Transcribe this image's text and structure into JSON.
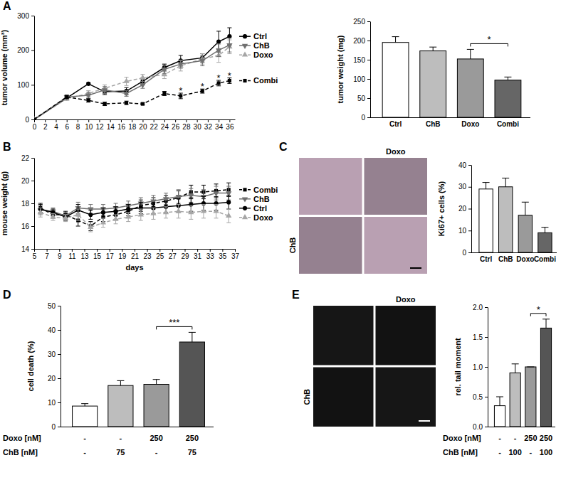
{
  "chart_data": [
    {
      "type": "line",
      "title": "A",
      "x": [
        0,
        6,
        10,
        13,
        17,
        20,
        24,
        27,
        31,
        34,
        36
      ],
      "xlim": [
        0,
        37
      ],
      "xticks": [
        0,
        2,
        4,
        6,
        8,
        10,
        12,
        14,
        16,
        18,
        20,
        22,
        24,
        26,
        28,
        30,
        32,
        34,
        36
      ],
      "ylim": [
        0,
        300
      ],
      "yticks": [
        0,
        100,
        200,
        300
      ],
      "y_label": "tumor volume (mm³)",
      "legend": "right",
      "series": [
        {
          "name": "Ctrl",
          "color": "#000000",
          "marker": "circle",
          "line_style": "solid",
          "values": [
            0,
            62,
            103,
            80,
            82,
            110,
            150,
            170,
            178,
            225,
            240
          ],
          "errors": [
            0,
            5,
            3,
            8,
            10,
            10,
            10,
            15,
            12,
            30,
            25
          ]
        },
        {
          "name": "Doxo",
          "color": "#a6a6a6",
          "marker": "triangle",
          "line_style": "dashed",
          "values": [
            0,
            60,
            75,
            90,
            110,
            120,
            130,
            155,
            175,
            185,
            210
          ],
          "errors": [
            0,
            5,
            8,
            10,
            12,
            10,
            12,
            15,
            15,
            20,
            20
          ]
        },
        {
          "name": "ChB",
          "color": "#707070",
          "marker": "triangle-down",
          "line_style": "solid",
          "values": [
            0,
            65,
            70,
            85,
            75,
            100,
            145,
            160,
            170,
            200,
            215
          ],
          "errors": [
            0,
            5,
            8,
            10,
            8,
            10,
            12,
            12,
            15,
            18,
            20
          ]
        },
        {
          "name": "Combi",
          "color": "#000000",
          "marker": "square",
          "line_style": "dashed",
          "values": [
            0,
            65,
            55,
            45,
            48,
            45,
            75,
            68,
            82,
            105,
            112
          ],
          "errors": [
            0,
            5,
            5,
            5,
            5,
            3,
            6,
            8,
            6,
            8,
            8
          ]
        }
      ],
      "annotations": [
        {
          "text": "*",
          "x": 27,
          "y": 82
        },
        {
          "text": "*",
          "x": 31,
          "y": 94
        },
        {
          "text": "*",
          "x": 34,
          "y": 119
        },
        {
          "text": "*",
          "x": 36,
          "y": 126
        }
      ]
    },
    {
      "type": "bar",
      "categories": [
        "Ctrl",
        "ChB",
        "Doxo",
        "Combi"
      ],
      "values": [
        195,
        173,
        152,
        97
      ],
      "errors": [
        15,
        10,
        25,
        8
      ],
      "colors": [
        "#ffffff",
        "#bdbdbd",
        "#9a9a9a",
        "#666666"
      ],
      "ylim": [
        0,
        250
      ],
      "yticks": [
        0,
        50,
        100,
        150,
        200,
        250
      ],
      "y_label": "tumor weight (mg)",
      "annotations": [
        {
          "text": "*",
          "between": [
            2,
            3
          ]
        }
      ]
    },
    {
      "type": "line",
      "title": "B",
      "x": [
        6,
        8,
        10,
        12,
        14,
        16,
        18,
        20,
        22,
        24,
        26,
        28,
        30,
        32,
        34,
        36
      ],
      "xlim": [
        5,
        37
      ],
      "xticks": [
        5,
        7,
        9,
        11,
        13,
        15,
        17,
        19,
        21,
        23,
        25,
        27,
        29,
        31,
        33,
        35,
        37
      ],
      "ylim": [
        14,
        22
      ],
      "yticks": [
        14,
        16,
        18,
        20,
        22
      ],
      "x_label": "days",
      "y_label": "mouse weight (g)",
      "legend": "right",
      "series": [
        {
          "name": "Combi",
          "color": "#000000",
          "marker": "square",
          "line_style": "dashed",
          "values": [
            17.6,
            17.0,
            17.0,
            16.5,
            16.0,
            16.8,
            17.0,
            17.3,
            17.8,
            18.0,
            18.2,
            18.5,
            19.0,
            19.0,
            19.1,
            19.2
          ],
          "errors": [
            0.4,
            0.3,
            0.3,
            0.5,
            0.4,
            0.4,
            0.4,
            0.4,
            0.5,
            0.5,
            0.5,
            0.6,
            0.6,
            0.6,
            0.6,
            0.6
          ]
        },
        {
          "name": "ChB",
          "color": "#707070",
          "marker": "triangle-down",
          "line_style": "solid",
          "values": [
            17.4,
            17.3,
            16.9,
            17.6,
            17.5,
            17.5,
            17.6,
            17.8,
            18.0,
            18.2,
            18.4,
            18.6,
            18.7,
            18.6,
            18.9,
            18.9
          ],
          "errors": [
            0.4,
            0.3,
            0.3,
            0.5,
            0.4,
            0.4,
            0.4,
            0.4,
            0.5,
            0.5,
            0.5,
            0.6,
            0.6,
            0.6,
            0.6,
            0.6
          ]
        },
        {
          "name": "Ctrl",
          "color": "#000000",
          "marker": "circle",
          "line_style": "solid",
          "values": [
            17.5,
            17.2,
            16.8,
            17.4,
            17.0,
            17.2,
            17.3,
            17.5,
            17.6,
            17.6,
            17.7,
            17.8,
            17.9,
            18.0,
            18.0,
            18.1
          ],
          "errors": [
            0.4,
            0.3,
            0.3,
            0.5,
            0.4,
            0.4,
            0.4,
            0.4,
            0.5,
            0.5,
            0.5,
            0.6,
            0.6,
            0.6,
            0.6,
            0.6
          ]
        },
        {
          "name": "Doxo",
          "color": "#a6a6a6",
          "marker": "triangle",
          "line_style": "dashed",
          "values": [
            17.2,
            16.8,
            16.7,
            17.0,
            15.9,
            16.3,
            16.6,
            16.8,
            17.0,
            17.1,
            17.2,
            17.3,
            17.2,
            17.3,
            17.3,
            16.9
          ],
          "errors": [
            0.4,
            0.3,
            0.3,
            0.5,
            0.4,
            0.4,
            0.4,
            0.4,
            0.5,
            0.5,
            0.5,
            0.6,
            0.6,
            0.6,
            0.6,
            0.6
          ]
        }
      ]
    },
    {
      "type": "image",
      "title": "C",
      "x_label": "Doxo",
      "y_label": "ChB",
      "color": "#b9a0b2"
    },
    {
      "type": "bar",
      "categories": [
        "Ctrl",
        "ChB",
        "Doxo",
        "Combi"
      ],
      "values": [
        29,
        30,
        17,
        9
      ],
      "errors": [
        3,
        4,
        6,
        2.5
      ],
      "colors": [
        "#ffffff",
        "#bdbdbd",
        "#9a9a9a",
        "#666666"
      ],
      "ylim": [
        0,
        40
      ],
      "yticks": [
        0,
        10,
        20,
        30,
        40
      ],
      "y_label": "Ki67+ cells (%)"
    },
    {
      "type": "bar",
      "title": "D",
      "categories": [
        null,
        null,
        null,
        null
      ],
      "values": [
        8.5,
        17,
        17.5,
        35
      ],
      "errors": [
        1,
        2,
        2,
        4
      ],
      "colors": [
        "#ffffff",
        "#bdbdbd",
        "#9a9a9a",
        "#555555"
      ],
      "ylim": [
        0,
        50
      ],
      "yticks": [
        0,
        10,
        20,
        30,
        40,
        50
      ],
      "y_label": "cell death (%)",
      "category_rows": [
        {
          "label": "Doxo [nM]",
          "values": [
            "-",
            "-",
            250,
            250
          ]
        },
        {
          "label": "ChB [nM]",
          "values": [
            "-",
            75,
            "-",
            75
          ]
        }
      ],
      "annotations": [
        {
          "text": "***",
          "between": [
            2,
            3
          ]
        }
      ]
    },
    {
      "type": "image",
      "title": "E",
      "x_label": "Doxo",
      "y_label": "ChB",
      "color": "#161616"
    },
    {
      "type": "bar",
      "categories": [
        null,
        null,
        null,
        null
      ],
      "values": [
        0.35,
        0.9,
        1.0,
        1.65
      ],
      "errors": [
        0.15,
        0.15,
        0,
        0.15
      ],
      "colors": [
        "#ffffff",
        "#bdbdbd",
        "#9a9a9a",
        "#555555"
      ],
      "ylim": [
        0,
        2
      ],
      "yticks": [
        {
          "value": 0,
          "label": "0.0"
        },
        {
          "value": 0.5,
          "label": "0.5"
        },
        {
          "value": 1,
          "label": "1.0"
        },
        {
          "value": 1.5,
          "label": "1.5"
        },
        {
          "value": 2,
          "label": "2.0"
        }
      ],
      "y_label": "rel. tail moment",
      "category_rows": [
        {
          "label": "Doxo [nM]",
          "values": [
            "-",
            "-",
            250,
            250
          ]
        },
        {
          "label": "ChB [nM]",
          "values": [
            "-",
            100,
            "-",
            100
          ]
        }
      ],
      "annotations": [
        {
          "text": "*",
          "between": [
            2,
            3
          ]
        }
      ]
    }
  ]
}
